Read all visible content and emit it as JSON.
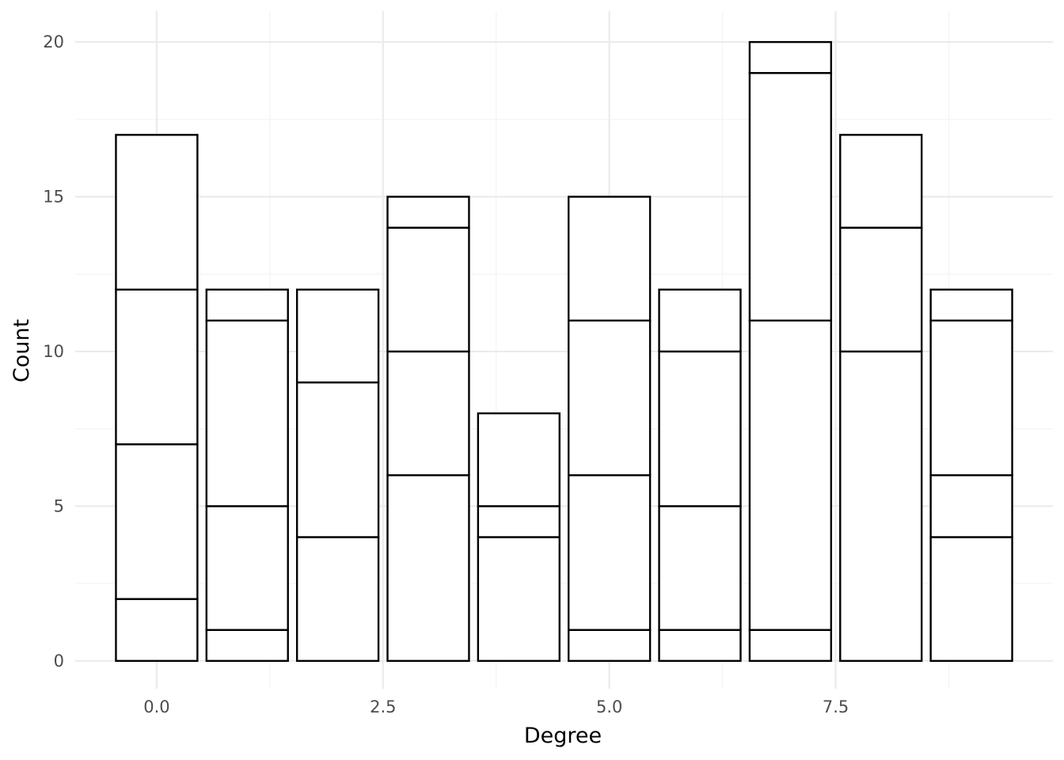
{
  "chart_data": {
    "type": "bar",
    "stacked": true,
    "title": "",
    "xlabel": "Degree",
    "ylabel": "Count",
    "xlim": [
      -0.9,
      9.9
    ],
    "ylim": [
      -0.9,
      21
    ],
    "x_major_ticks": [
      0.0,
      2.5,
      5.0,
      7.5
    ],
    "x_tick_labels": [
      "0.0",
      "2.5",
      "5.0",
      "7.5"
    ],
    "x_minor_ticks": [
      1.25,
      3.75,
      6.25,
      8.75
    ],
    "y_major_ticks": [
      0,
      5,
      10,
      15,
      20
    ],
    "y_tick_labels": [
      "0",
      "5",
      "10",
      "15",
      "20"
    ],
    "y_minor_ticks": [
      2.5,
      7.5,
      12.5,
      17.5
    ],
    "bar_width": 0.9,
    "grid": true,
    "legend": "none",
    "bars": [
      {
        "x": 0,
        "segments": [
          2,
          5,
          5,
          5
        ]
      },
      {
        "x": 1,
        "segments": [
          1,
          4,
          6,
          1
        ]
      },
      {
        "x": 2,
        "segments": [
          4,
          5,
          3
        ]
      },
      {
        "x": 3,
        "segments": [
          6,
          4,
          4,
          1
        ]
      },
      {
        "x": 4,
        "segments": [
          4,
          1,
          3
        ]
      },
      {
        "x": 5,
        "segments": [
          1,
          5,
          5,
          4
        ]
      },
      {
        "x": 6,
        "segments": [
          1,
          4,
          5,
          2
        ]
      },
      {
        "x": 7,
        "segments": [
          1,
          10,
          8,
          1
        ]
      },
      {
        "x": 8,
        "segments": [
          10,
          4,
          3
        ]
      },
      {
        "x": 9,
        "segments": [
          4,
          2,
          5,
          1
        ]
      }
    ]
  }
}
